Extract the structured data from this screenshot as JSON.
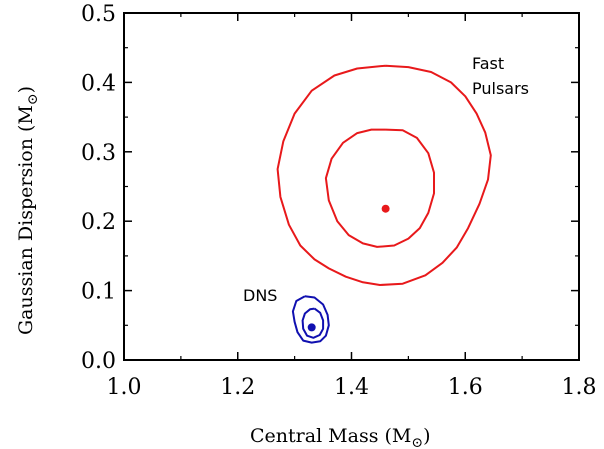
{
  "chart_data": {
    "type": "scatter",
    "xlabel": "Central Mass (M",
    "ylabel": "Gaussian Dispersion (M",
    "xlim": [
      1.0,
      1.8
    ],
    "ylim": [
      0.0,
      0.5
    ],
    "x_ticks": [
      "1.0",
      "1.2",
      "1.4",
      "1.6",
      "1.8"
    ],
    "y_ticks": [
      "0.0",
      "0.1",
      "0.2",
      "0.3",
      "0.4",
      "0.5"
    ],
    "grid": false,
    "sun_symbol": "⊙",
    "series": [
      {
        "name": "Fast Pulsars",
        "label_lines": [
          "Fast",
          "Pulsars"
        ],
        "color": "#e8191b",
        "best_fit": {
          "x": 1.46,
          "y": 0.218
        },
        "contours": [
          [
            [
              1.46,
              0.424
            ],
            [
              1.5,
              0.422
            ],
            [
              1.54,
              0.415
            ],
            [
              1.575,
              0.4
            ],
            [
              1.6,
              0.38
            ],
            [
              1.62,
              0.355
            ],
            [
              1.635,
              0.328
            ],
            [
              1.645,
              0.295
            ],
            [
              1.64,
              0.26
            ],
            [
              1.625,
              0.225
            ],
            [
              1.605,
              0.19
            ],
            [
              1.585,
              0.162
            ],
            [
              1.56,
              0.14
            ],
            [
              1.53,
              0.122
            ],
            [
              1.49,
              0.11
            ],
            [
              1.45,
              0.108
            ],
            [
              1.42,
              0.112
            ],
            [
              1.39,
              0.12
            ],
            [
              1.36,
              0.132
            ],
            [
              1.335,
              0.145
            ],
            [
              1.31,
              0.165
            ],
            [
              1.29,
              0.195
            ],
            [
              1.275,
              0.235
            ],
            [
              1.27,
              0.275
            ],
            [
              1.28,
              0.315
            ],
            [
              1.3,
              0.355
            ],
            [
              1.33,
              0.388
            ],
            [
              1.37,
              0.41
            ],
            [
              1.41,
              0.42
            ],
            [
              1.46,
              0.424
            ]
          ],
          [
            [
              1.46,
              0.332
            ],
            [
              1.49,
              0.331
            ],
            [
              1.515,
              0.32
            ],
            [
              1.535,
              0.298
            ],
            [
              1.545,
              0.27
            ],
            [
              1.545,
              0.24
            ],
            [
              1.535,
              0.212
            ],
            [
              1.52,
              0.19
            ],
            [
              1.5,
              0.175
            ],
            [
              1.475,
              0.165
            ],
            [
              1.445,
              0.163
            ],
            [
              1.42,
              0.168
            ],
            [
              1.395,
              0.18
            ],
            [
              1.375,
              0.2
            ],
            [
              1.36,
              0.23
            ],
            [
              1.355,
              0.262
            ],
            [
              1.365,
              0.29
            ],
            [
              1.385,
              0.313
            ],
            [
              1.41,
              0.327
            ],
            [
              1.435,
              0.332
            ],
            [
              1.46,
              0.332
            ]
          ]
        ]
      },
      {
        "name": "DNS",
        "label_lines": [
          "DNS"
        ],
        "color": "#1010b0",
        "best_fit": {
          "x": 1.33,
          "y": 0.047
        },
        "contours": [
          [
            [
              1.318,
              0.092
            ],
            [
              1.335,
              0.09
            ],
            [
              1.35,
              0.08
            ],
            [
              1.358,
              0.065
            ],
            [
              1.36,
              0.05
            ],
            [
              1.355,
              0.035
            ],
            [
              1.345,
              0.027
            ],
            [
              1.33,
              0.025
            ],
            [
              1.315,
              0.028
            ],
            [
              1.305,
              0.04
            ],
            [
              1.3,
              0.055
            ],
            [
              1.297,
              0.07
            ],
            [
              1.303,
              0.085
            ],
            [
              1.318,
              0.092
            ]
          ],
          [
            [
              1.335,
              0.074
            ],
            [
              1.345,
              0.068
            ],
            [
              1.35,
              0.057
            ],
            [
              1.35,
              0.045
            ],
            [
              1.344,
              0.036
            ],
            [
              1.333,
              0.032
            ],
            [
              1.322,
              0.035
            ],
            [
              1.315,
              0.045
            ],
            [
              1.314,
              0.057
            ],
            [
              1.318,
              0.067
            ],
            [
              1.327,
              0.073
            ],
            [
              1.335,
              0.074
            ]
          ]
        ]
      }
    ]
  }
}
